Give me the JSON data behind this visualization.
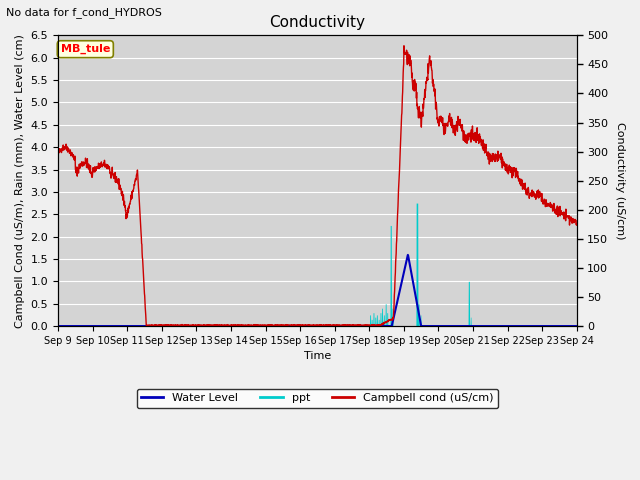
{
  "title": "Conductivity",
  "top_left_text": "No data for f_cond_HYDROS",
  "station_label": "MB_tule",
  "xlabel": "Time",
  "ylabel_left": "Campbell Cond (uS/m), Rain (mm), Water Level (cm)",
  "ylabel_right": "Conductivity (uS/cm)",
  "ylim_left": [
    0.0,
    6.5
  ],
  "ylim_right": [
    0,
    500
  ],
  "yticks_left": [
    0.0,
    0.5,
    1.0,
    1.5,
    2.0,
    2.5,
    3.0,
    3.5,
    4.0,
    4.5,
    5.0,
    5.5,
    6.0,
    6.5
  ],
  "yticks_right": [
    0,
    50,
    100,
    150,
    200,
    250,
    300,
    350,
    400,
    450,
    500
  ],
  "fig_bg_color": "#f0f0f0",
  "plot_bg_color": "#d4d4d4",
  "grid_color": "#ffffff",
  "campbell_color": "#cc0000",
  "water_level_color": "#0000bb",
  "ppt_color": "#00cccc",
  "legend_entries": [
    "Water Level",
    "ppt",
    "Campbell cond (uS/cm)"
  ],
  "title_fontsize": 11,
  "label_fontsize": 8,
  "tick_fontsize": 8,
  "xtick_fontsize": 7
}
